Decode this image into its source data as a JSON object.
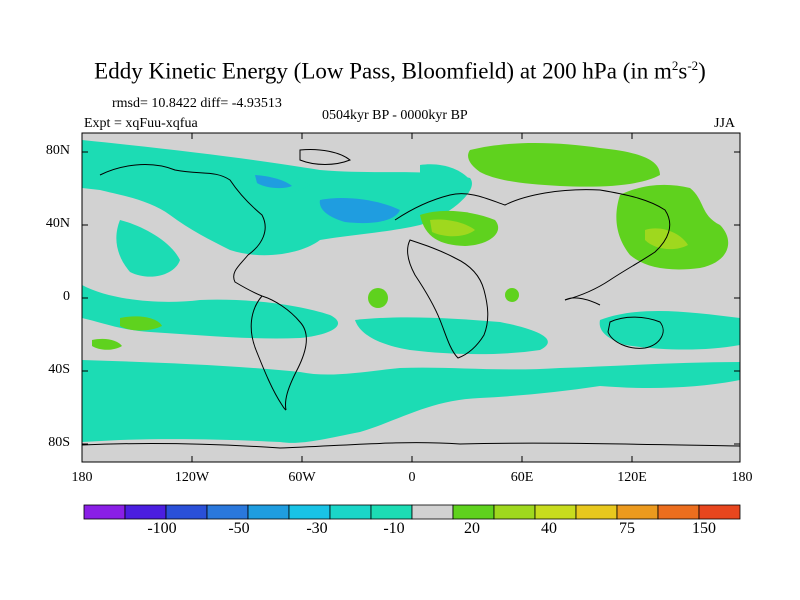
{
  "title": {
    "prefix": "Eddy Kinetic Energy (Low Pass, Bloomfield) at 200 hPa (in m",
    "exp1": "2",
    "mid": "s",
    "exp2": "-2",
    "suffix": ")"
  },
  "stats": "rmsd= 10.8422 diff= -4.93513",
  "period": "0504kyr BP - 0000kyr BP",
  "experiment": "Expt = xqFuu-xqfua",
  "season": "JJA",
  "y_ticks": [
    "80N",
    "40N",
    "0",
    "40S",
    "80S"
  ],
  "x_ticks": [
    "180",
    "120W",
    "60W",
    "0",
    "60E",
    "120E",
    "180"
  ],
  "colorbar": {
    "colors": [
      "#8a1fe6",
      "#4b1ee0",
      "#2a50d8",
      "#2a78dc",
      "#1f9de0",
      "#19c3e6",
      "#1ad6c8",
      "#1cdcb4",
      "#d2d2d2",
      "#5fd21e",
      "#9fd81e",
      "#c8dc1e",
      "#e8c81e",
      "#ec9a1e",
      "#ec6e1e",
      "#e8461e"
    ],
    "labels": [
      "-100",
      "-50",
      "-30",
      "-10",
      "20",
      "40",
      "75",
      "150"
    ]
  },
  "map_colors": {
    "land_bg": "#d2d2d2",
    "neg_light": "#1cdcb4",
    "neg_mid": "#1ad6c8",
    "neg_strong": "#1f9de0",
    "pos_light": "#5fd21e",
    "pos_strong": "#9fd81e",
    "coast": "#000000"
  }
}
